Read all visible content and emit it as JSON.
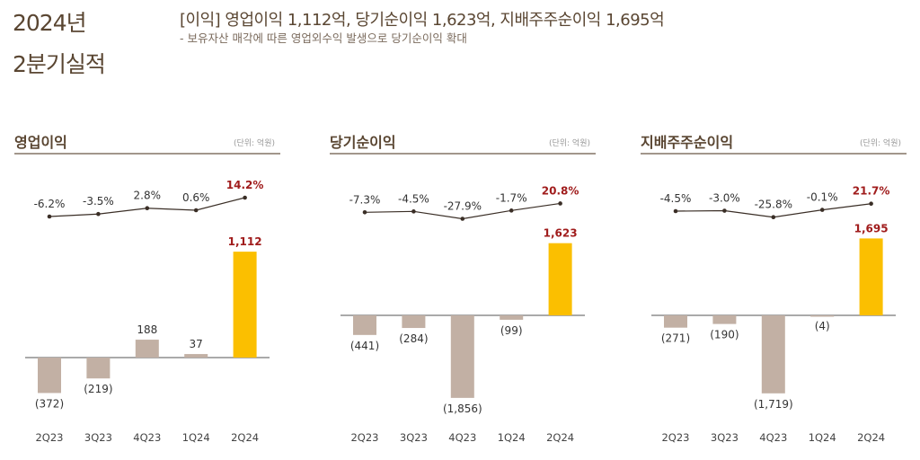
{
  "header": {
    "year": "2024년",
    "quarter": "2분기실적",
    "headline": "[이익] 영업이익 1,112억,  당기순이익 1,623억, 지배주주순이익 1,695억",
    "subline": "- 보유자산 매각에 따른 영업외수익 발생으로 당기순이익 확대"
  },
  "colors": {
    "text": "#5a4632",
    "bar": "#c2b0a4",
    "highlight_bar": "#fbbf00",
    "highlight_text": "#a01c1c",
    "line": "#3a2e26"
  },
  "chart_data": [
    {
      "type": "bar",
      "title": "영업이익",
      "unit": "(단위: 억원)",
      "categories": [
        "2Q23",
        "3Q23",
        "4Q23",
        "1Q24",
        "2Q24"
      ],
      "values": [
        -372,
        -219,
        188,
        37,
        1112
      ],
      "value_labels": [
        "(372)",
        "(219)",
        "188",
        "37",
        "1,112"
      ],
      "line": {
        "type": "line",
        "values": [
          -6.2,
          -3.5,
          2.8,
          0.6,
          14.2
        ],
        "labels": [
          "-6.2%",
          "-3.5%",
          "2.8%",
          "0.6%",
          "14.2%"
        ]
      },
      "highlight_index": 4
    },
    {
      "type": "bar",
      "title": "당기순이익",
      "unit": "(단위: 억원)",
      "categories": [
        "2Q23",
        "3Q23",
        "4Q23",
        "1Q24",
        "2Q24"
      ],
      "values": [
        -441,
        -284,
        -1856,
        -99,
        1623
      ],
      "value_labels": [
        "(441)",
        "(284)",
        "(1,856)",
        "(99)",
        "1,623"
      ],
      "line": {
        "type": "line",
        "values": [
          -7.3,
          -4.5,
          -27.9,
          -1.7,
          20.8
        ],
        "labels": [
          "-7.3%",
          "-4.5%",
          "-27.9%",
          "-1.7%",
          "20.8%"
        ]
      },
      "highlight_index": 4
    },
    {
      "type": "bar",
      "title": "지배주주순이익",
      "unit": "(단위: 억원)",
      "categories": [
        "2Q23",
        "3Q23",
        "4Q23",
        "1Q24",
        "2Q24"
      ],
      "values": [
        -271,
        -190,
        -1719,
        -4,
        1695
      ],
      "value_labels": [
        "(271)",
        "(190)",
        "(1,719)",
        "(4)",
        "1,695"
      ],
      "line": {
        "type": "line",
        "values": [
          -4.5,
          -3.0,
          -25.8,
          -0.1,
          21.7
        ],
        "labels": [
          "-4.5%",
          "-3.0%",
          "-25.8%",
          "-0.1%",
          "21.7%"
        ]
      },
      "highlight_index": 4
    }
  ]
}
